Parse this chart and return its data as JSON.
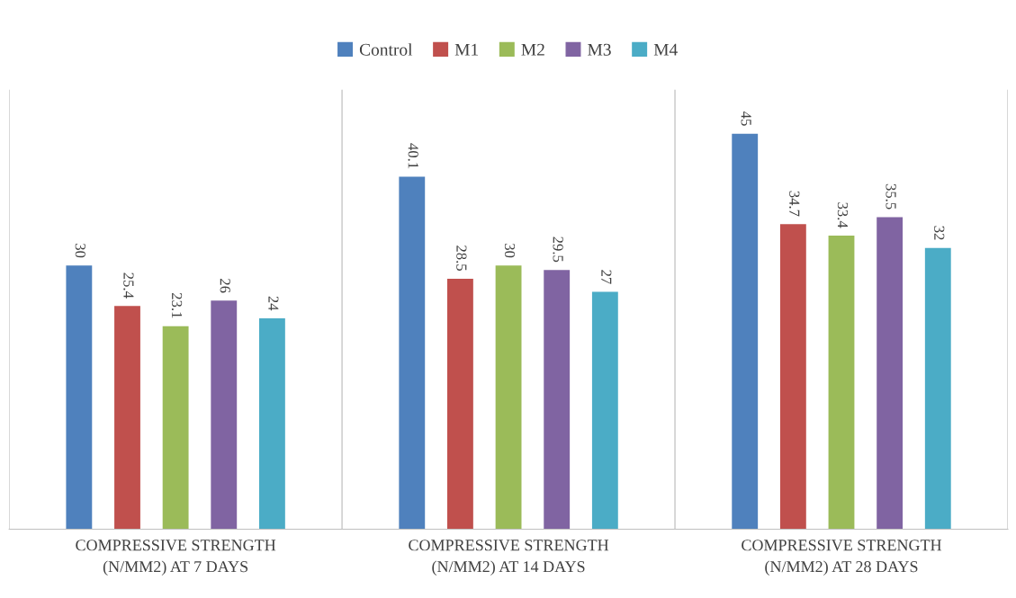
{
  "chart_data": {
    "type": "bar",
    "categories": [
      "COMPRESSIVE STRENGTH\n(N/MM2) AT 7 DAYS",
      "COMPRESSIVE STRENGTH\n(N/MM2) AT 14 DAYS",
      "COMPRESSIVE STRENGTH\n(N/MM2) AT 28 DAYS"
    ],
    "series": [
      {
        "name": "Control",
        "color": "#4f81bd",
        "values": [
          30,
          40.1,
          45
        ]
      },
      {
        "name": "M1",
        "color": "#c0504d",
        "values": [
          25.4,
          28.5,
          34.7
        ]
      },
      {
        "name": "M2",
        "color": "#9bbb59",
        "values": [
          23.1,
          30,
          33.4
        ]
      },
      {
        "name": "M3",
        "color": "#8064a2",
        "values": [
          26,
          29.5,
          35.5
        ]
      },
      {
        "name": "M4",
        "color": "#4bacc6",
        "values": [
          24,
          27,
          32
        ]
      }
    ],
    "ylim": [
      0,
      50
    ],
    "data_labels": true,
    "legend": "top",
    "grid": "x",
    "tick_labels": "x"
  }
}
